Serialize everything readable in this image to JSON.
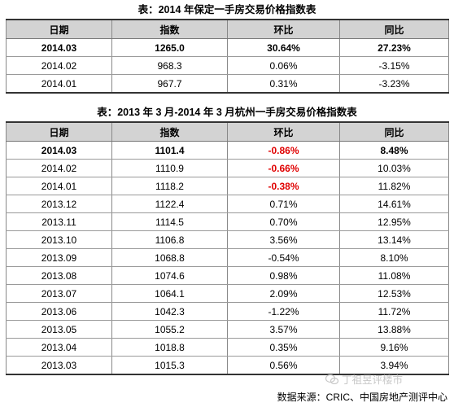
{
  "table1": {
    "title": "表：2014 年保定一手房交易价格指数表",
    "headers": [
      "日期",
      "指数",
      "环比",
      "同比"
    ],
    "rows": [
      {
        "date": "2014.03",
        "index": "1265.0",
        "mom": "30.64%",
        "yoy": "27.23%"
      },
      {
        "date": "2014.02",
        "index": "968.3",
        "mom": "0.06%",
        "yoy": "-3.15%"
      },
      {
        "date": "2014.01",
        "index": "967.7",
        "mom": "0.31%",
        "yoy": "-3.23%"
      }
    ]
  },
  "table2": {
    "title": "表：2013 年 3 月-2014 年 3 月杭州一手房交易价格指数表",
    "headers": [
      "日期",
      "指数",
      "环比",
      "同比"
    ],
    "rows": [
      {
        "date": "2014.03",
        "index": "1101.4",
        "mom": "-0.86%",
        "yoy": "8.48%"
      },
      {
        "date": "2014.02",
        "index": "1110.9",
        "mom": "-0.66%",
        "yoy": "10.03%"
      },
      {
        "date": "2014.01",
        "index": "1118.2",
        "mom": "-0.38%",
        "yoy": "11.82%"
      },
      {
        "date": "2013.12",
        "index": "1122.4",
        "mom": "0.71%",
        "yoy": "14.61%"
      },
      {
        "date": "2013.11",
        "index": "1114.5",
        "mom": "0.70%",
        "yoy": "12.95%"
      },
      {
        "date": "2013.10",
        "index": "1106.8",
        "mom": "3.56%",
        "yoy": "13.14%"
      },
      {
        "date": "2013.09",
        "index": "1068.8",
        "mom": "-0.54%",
        "yoy": "8.10%"
      },
      {
        "date": "2013.08",
        "index": "1074.6",
        "mom": "0.98%",
        "yoy": "11.08%"
      },
      {
        "date": "2013.07",
        "index": "1064.1",
        "mom": "2.09%",
        "yoy": "12.53%"
      },
      {
        "date": "2013.06",
        "index": "1042.3",
        "mom": "-1.22%",
        "yoy": "11.72%"
      },
      {
        "date": "2013.05",
        "index": "1055.2",
        "mom": "3.57%",
        "yoy": "13.88%"
      },
      {
        "date": "2013.04",
        "index": "1018.8",
        "mom": "0.35%",
        "yoy": "9.16%"
      },
      {
        "date": "2013.03",
        "index": "1015.3",
        "mom": "0.56%",
        "yoy": "3.94%"
      }
    ]
  },
  "watermark": "丁祖昱评楼市",
  "source": "数据来源：CRIC、中国房地产测评中心",
  "colors": {
    "header_bg": "#d3d3d3",
    "highlight_red": "#e00000"
  }
}
